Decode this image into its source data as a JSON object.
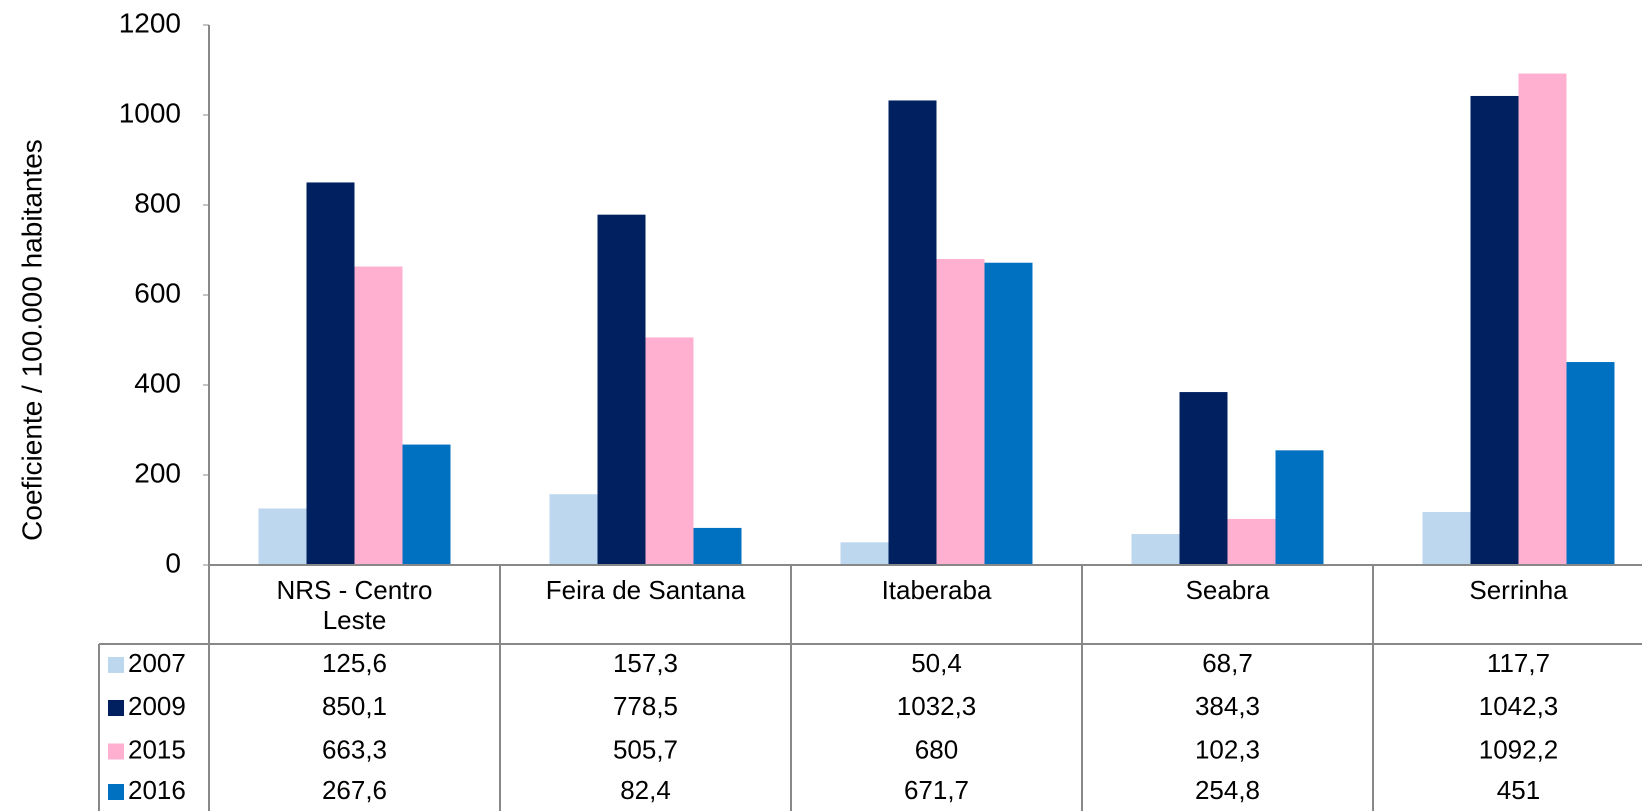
{
  "chart_data": {
    "type": "bar",
    "y_label": "Coeficiente / 100.000 habitantes",
    "categories": [
      "NRS - Centro Leste",
      "Feira de Santana",
      "Itaberaba",
      "Seabra",
      "Serrinha"
    ],
    "series": [
      {
        "name": "2007",
        "color": "#bdd7ee",
        "values": [
          125.6,
          157.3,
          50.4,
          68.7,
          117.7
        ],
        "value_labels": [
          "125,6",
          "157,3",
          "50,4",
          "68,7",
          "117,7"
        ]
      },
      {
        "name": "2009",
        "color": "#002060",
        "values": [
          850.1,
          778.5,
          1032.3,
          384.3,
          1042.3
        ],
        "value_labels": [
          "850,1",
          "778,5",
          "1032,3",
          "384,3",
          "1042,3"
        ]
      },
      {
        "name": "2015",
        "color": "#ffafd0",
        "values": [
          663.3,
          505.7,
          680,
          102.3,
          1092.2
        ],
        "value_labels": [
          "663,3",
          "505,7",
          "680",
          "102,3",
          "1092,2"
        ]
      },
      {
        "name": "2016",
        "color": "#0070c0",
        "values": [
          267.6,
          82.4,
          671.7,
          254.8,
          451
        ],
        "value_labels": [
          "267,6",
          "82,4",
          "671,7",
          "254,8",
          "451"
        ]
      }
    ],
    "ylim": [
      0,
      1200
    ],
    "yticks": [
      0,
      200,
      400,
      600,
      800,
      1000,
      1200
    ]
  }
}
